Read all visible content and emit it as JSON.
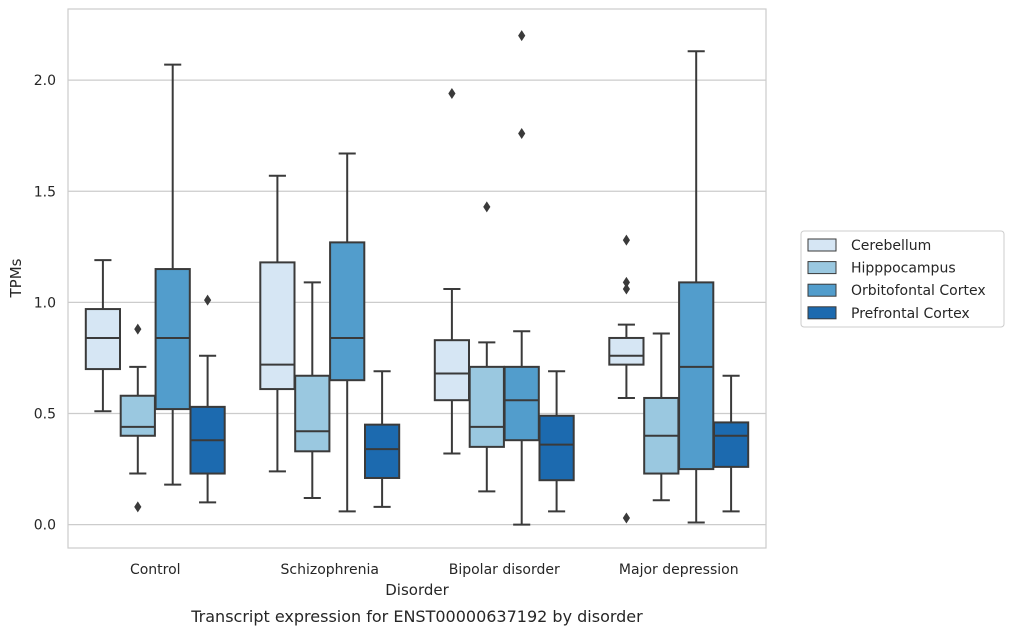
{
  "chart_data": {
    "type": "box",
    "caption": "Transcript expression for ENST00000637192 by disorder",
    "xlabel": "Disorder",
    "ylabel": "TPMs",
    "ylim": [
      -0.105,
      2.32
    ],
    "yticks": [
      0.0,
      0.5,
      1.0,
      1.5,
      2.0
    ],
    "ytick_labels": [
      "0.0",
      "0.5",
      "1.0",
      "1.5",
      "2.0"
    ],
    "grid": "horizontal",
    "legend_position": "right",
    "categories": [
      "Control",
      "Schizophrenia",
      "Bipolar disorder",
      "Major depression"
    ],
    "series": [
      {
        "name": "Cerebellum",
        "color": "#d6e6f4",
        "boxes": [
          {
            "whisker_low": 0.51,
            "q1": 0.7,
            "median": 0.84,
            "q3": 0.97,
            "whisker_high": 1.19,
            "outliers": []
          },
          {
            "whisker_low": 0.24,
            "q1": 0.61,
            "median": 0.72,
            "q3": 1.18,
            "whisker_high": 1.57,
            "outliers": []
          },
          {
            "whisker_low": 0.32,
            "q1": 0.56,
            "median": 0.68,
            "q3": 0.83,
            "whisker_high": 1.06,
            "outliers": [
              1.94
            ]
          },
          {
            "whisker_low": 0.57,
            "q1": 0.72,
            "median": 0.76,
            "q3": 0.84,
            "whisker_high": 0.9,
            "outliers": [
              1.28,
              1.09,
              1.06,
              0.03
            ]
          }
        ]
      },
      {
        "name": "Hipppocampus",
        "color": "#9ac8e0",
        "boxes": [
          {
            "whisker_low": 0.23,
            "q1": 0.4,
            "median": 0.44,
            "q3": 0.58,
            "whisker_high": 0.71,
            "outliers": [
              0.88,
              0.08
            ]
          },
          {
            "whisker_low": 0.12,
            "q1": 0.33,
            "median": 0.42,
            "q3": 0.67,
            "whisker_high": 1.09,
            "outliers": []
          },
          {
            "whisker_low": 0.15,
            "q1": 0.35,
            "median": 0.44,
            "q3": 0.71,
            "whisker_high": 0.82,
            "outliers": [
              1.43
            ]
          },
          {
            "whisker_low": 0.11,
            "q1": 0.23,
            "median": 0.4,
            "q3": 0.57,
            "whisker_high": 0.86,
            "outliers": []
          }
        ]
      },
      {
        "name": "Orbitofontal Cortex",
        "color": "#529dcc",
        "boxes": [
          {
            "whisker_low": 0.18,
            "q1": 0.52,
            "median": 0.84,
            "q3": 1.15,
            "whisker_high": 2.07,
            "outliers": []
          },
          {
            "whisker_low": 0.06,
            "q1": 0.65,
            "median": 0.84,
            "q3": 1.27,
            "whisker_high": 1.67,
            "outliers": []
          },
          {
            "whisker_low": 0.0,
            "q1": 0.38,
            "median": 0.56,
            "q3": 0.71,
            "whisker_high": 0.87,
            "outliers": [
              2.2,
              1.76
            ]
          },
          {
            "whisker_low": 0.01,
            "q1": 0.25,
            "median": 0.71,
            "q3": 1.09,
            "whisker_high": 2.13,
            "outliers": []
          }
        ]
      },
      {
        "name": "Prefrontal Cortex",
        "color": "#1c6aaf",
        "boxes": [
          {
            "whisker_low": 0.1,
            "q1": 0.23,
            "median": 0.38,
            "q3": 0.53,
            "whisker_high": 0.76,
            "outliers": [
              1.01
            ]
          },
          {
            "whisker_low": 0.08,
            "q1": 0.21,
            "median": 0.34,
            "q3": 0.45,
            "whisker_high": 0.69,
            "outliers": []
          },
          {
            "whisker_low": 0.06,
            "q1": 0.2,
            "median": 0.36,
            "q3": 0.49,
            "whisker_high": 0.69,
            "outliers": []
          },
          {
            "whisker_low": 0.06,
            "q1": 0.26,
            "median": 0.4,
            "q3": 0.46,
            "whisker_high": 0.67,
            "outliers": []
          }
        ]
      }
    ]
  }
}
